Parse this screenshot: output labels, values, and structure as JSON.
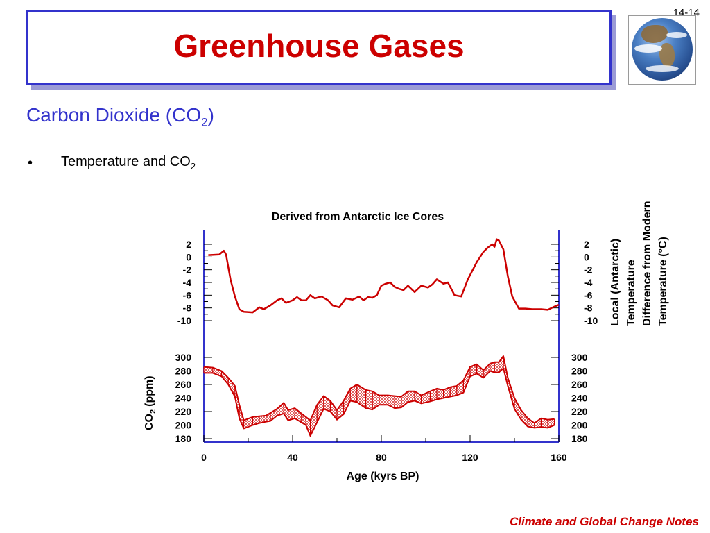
{
  "slide_number": "14-14",
  "title": "Greenhouse Gases",
  "subtitle": {
    "text": "Carbon Dioxide (CO",
    "sub": "2",
    "close": ")"
  },
  "bullet": {
    "symbol": "•",
    "text": "Temperature and CO",
    "sub": "2"
  },
  "footer": "Climate and Global Change Notes",
  "colors": {
    "accent_red": "#cc0000",
    "accent_blue": "#3333cc",
    "series": "#cc0000"
  },
  "globe_icon": "earth-globe",
  "chart_data": {
    "type": "line",
    "title": "Derived from Antarctic Ice Cores",
    "xlabel": "Age (kyrs BP)",
    "xlim": [
      0,
      160
    ],
    "xticks": [
      "0",
      "40",
      "80",
      "120",
      "160"
    ],
    "temperature": {
      "ylabel_lines": [
        "Local (Antarctic)",
        "Temperature",
        "Difference from Modern",
        "Temperature (°C)"
      ],
      "ylim": [
        -10,
        2
      ],
      "yticks": [
        "2",
        "0",
        "-2",
        "-4",
        "-6",
        "-8",
        "-10"
      ],
      "x": [
        2,
        7,
        9,
        10,
        12,
        14,
        16,
        18,
        22,
        25,
        27,
        30,
        33,
        35,
        37,
        40,
        42,
        44,
        46,
        48,
        50,
        53,
        56,
        58,
        61,
        64,
        67,
        70,
        72,
        74,
        76,
        78,
        80,
        82,
        84,
        86,
        88,
        90,
        92,
        95,
        98,
        101,
        103,
        105,
        108,
        110,
        113,
        116,
        119,
        123,
        126,
        128,
        130,
        131,
        132,
        133,
        135,
        137,
        139,
        142,
        145,
        148,
        152,
        155,
        158,
        160
      ],
      "y": [
        0.3,
        0.4,
        1.0,
        0.4,
        -3.5,
        -6.2,
        -8.2,
        -8.6,
        -8.7,
        -7.9,
        -8.2,
        -7.6,
        -6.8,
        -6.5,
        -7.2,
        -6.8,
        -6.3,
        -6.8,
        -6.8,
        -6.0,
        -6.5,
        -6.2,
        -6.8,
        -7.6,
        -7.9,
        -6.5,
        -6.7,
        -6.2,
        -6.8,
        -6.3,
        -6.4,
        -6.0,
        -4.5,
        -4.2,
        -4.0,
        -4.7,
        -5.0,
        -5.2,
        -4.5,
        -5.5,
        -4.5,
        -4.8,
        -4.3,
        -3.5,
        -4.2,
        -4.0,
        -6.0,
        -6.2,
        -3.5,
        -0.8,
        0.8,
        1.5,
        2.0,
        1.6,
        2.8,
        2.6,
        1.2,
        -3.0,
        -6.2,
        -8.1,
        -8.1,
        -8.2,
        -8.2,
        -8.3,
        -7.8,
        -7.5
      ]
    },
    "co2": {
      "ylabel": "CO",
      "ylabel_sub": "2",
      "ylabel_unit": "(ppm)",
      "ylim": [
        180,
        300
      ],
      "yticks": [
        "300",
        "280",
        "260",
        "240",
        "220",
        "200",
        "180"
      ],
      "x": [
        0,
        4,
        8,
        11,
        14,
        16,
        18,
        22,
        25,
        28,
        30,
        33,
        36,
        38,
        41,
        44,
        46,
        48,
        51,
        54,
        57,
        60,
        63,
        66,
        69,
        73,
        76,
        79,
        83,
        86,
        89,
        92,
        95,
        98,
        102,
        105,
        108,
        111,
        114,
        117,
        120,
        123,
        126,
        129,
        131,
        133,
        135,
        137,
        140,
        143,
        146,
        149,
        152,
        155,
        158
      ],
      "upper": [
        286,
        285,
        280,
        270,
        258,
        230,
        207,
        212,
        213,
        214,
        218,
        224,
        233,
        222,
        225,
        217,
        212,
        207,
        230,
        243,
        236,
        222,
        236,
        254,
        260,
        252,
        250,
        244,
        244,
        243,
        242,
        250,
        250,
        244,
        250,
        254,
        252,
        256,
        258,
        266,
        286,
        290,
        281,
        291,
        293,
        293,
        302,
        270,
        240,
        222,
        210,
        203,
        210,
        208,
        209
      ],
      "lower": [
        277,
        277,
        272,
        260,
        242,
        210,
        195,
        200,
        203,
        205,
        206,
        214,
        217,
        207,
        210,
        204,
        200,
        184,
        204,
        224,
        220,
        208,
        216,
        236,
        234,
        225,
        223,
        230,
        230,
        225,
        226,
        234,
        236,
        232,
        235,
        238,
        240,
        242,
        244,
        248,
        272,
        276,
        270,
        280,
        278,
        278,
        284,
        258,
        224,
        208,
        198,
        196,
        197,
        196,
        200
      ]
    }
  }
}
